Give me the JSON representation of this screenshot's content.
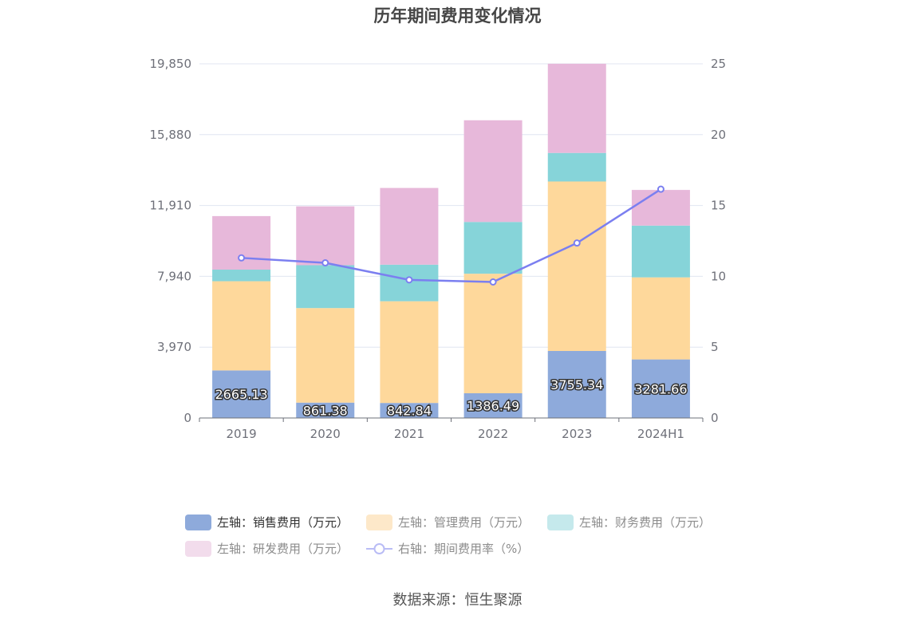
{
  "title": "历年期间费用变化情况",
  "source": "数据来源：恒生聚源",
  "chart_data": {
    "type": "bar",
    "stacked": true,
    "categories": [
      "2019",
      "2020",
      "2021",
      "2022",
      "2023",
      "2024H1"
    ],
    "left_axis": {
      "ticks": [
        "0",
        "3,970",
        "7,940",
        "11,910",
        "15,880",
        "19,850"
      ],
      "ylim": [
        0,
        19850
      ]
    },
    "right_axis": {
      "ticks": [
        "0",
        "5",
        "10",
        "15",
        "20",
        "25"
      ],
      "ylim": [
        0,
        25
      ]
    },
    "series": [
      {
        "name": "左轴：销售费用（万元）",
        "axis": "left",
        "color": "#8eaadb",
        "values": [
          2665.13,
          861.38,
          842.84,
          1386.49,
          3755.34,
          3281.66
        ],
        "labels": [
          "2665.13",
          "861.38",
          "842.84",
          "1386.49",
          "3755.34",
          "3281.66"
        ]
      },
      {
        "name": "左轴：管理费用（万元）",
        "axis": "left",
        "color": "#fed89b",
        "values": [
          5000,
          5300,
          5700,
          6700,
          9500,
          4600
        ]
      },
      {
        "name": "左轴：财务费用（万元）",
        "axis": "left",
        "color": "#86d4d9",
        "values": [
          650,
          2400,
          2050,
          2900,
          1600,
          2900
        ]
      },
      {
        "name": "左轴：研发费用（万元）",
        "axis": "left",
        "color": "#e7b8da",
        "values": [
          3000,
          3300,
          4300,
          5700,
          5000,
          2000
        ]
      },
      {
        "name": "右轴：期间费用率（%）",
        "axis": "right",
        "type": "line",
        "color": "#7b7ff0",
        "values": [
          11.3,
          10.95,
          9.75,
          9.6,
          12.35,
          16.15
        ]
      }
    ],
    "legend_position": "bottom",
    "grid": true
  }
}
